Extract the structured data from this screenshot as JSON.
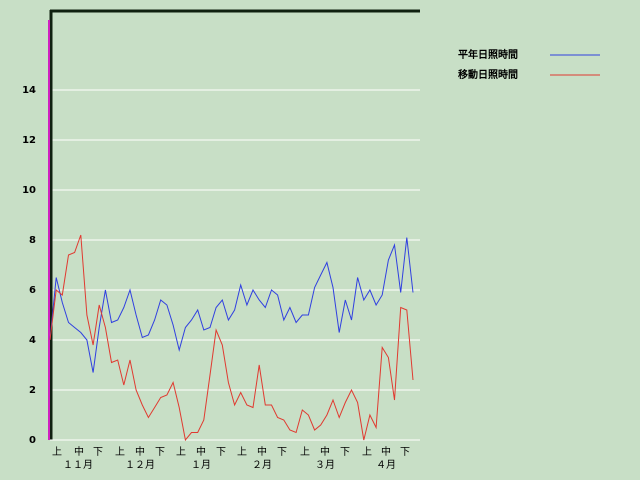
{
  "chart_data": {
    "type": "line",
    "series": [
      {
        "name": "平年日照時間",
        "color": "#3040e0",
        "values": [
          4.0,
          6.5,
          5.5,
          4.7,
          4.5,
          4.3,
          4.0,
          2.7,
          4.5,
          6.0,
          4.7,
          4.8,
          5.3,
          6.0,
          5.0,
          4.1,
          4.2,
          4.8,
          5.6,
          5.4,
          4.6,
          3.6,
          4.5,
          4.8,
          5.2,
          4.4,
          4.5,
          5.3,
          5.6,
          4.8,
          5.2,
          6.2,
          5.4,
          6.0,
          5.6,
          5.3,
          6.0,
          5.8,
          4.8,
          5.3,
          4.7,
          5.0,
          5.0,
          6.1,
          6.6,
          7.1,
          6.1,
          4.3,
          5.6,
          4.8,
          6.5,
          5.6,
          6.0,
          5.4,
          5.8,
          7.2,
          7.8,
          5.9,
          8.1,
          5.9
        ]
      },
      {
        "name": "移動日照時間",
        "color": "#e03a30",
        "values": [
          4.0,
          6.0,
          5.8,
          7.4,
          7.5,
          8.2,
          5.0,
          3.8,
          5.4,
          4.5,
          3.1,
          3.2,
          2.2,
          3.2,
          2.0,
          1.4,
          0.9,
          1.3,
          1.7,
          1.8,
          2.3,
          1.3,
          0,
          0.3,
          0.3,
          0.8,
          2.6,
          4.4,
          3.8,
          2.3,
          1.4,
          1.9,
          1.4,
          1.3,
          3.0,
          1.4,
          1.4,
          0.9,
          0.8,
          0.4,
          0.3,
          1.2,
          1.0,
          0.4,
          0.6,
          1.0,
          1.6,
          0.9,
          1.5,
          2.0,
          1.5,
          0,
          1.0,
          0.5,
          3.7,
          3.3,
          1.6,
          5.3,
          5.2,
          2.4
        ]
      }
    ],
    "x_period_labels": [
      "上",
      "中",
      "下",
      "上",
      "中",
      "下",
      "上",
      "中",
      "下",
      "上",
      "中",
      "下",
      "上",
      "中",
      "下",
      "上",
      "中",
      "下"
    ],
    "x_month_labels": [
      "１１月",
      "１２月",
      "１月",
      "２月",
      "３月",
      "４月"
    ],
    "ylim": [
      0,
      17.2
    ],
    "yticks": [
      0,
      2,
      4,
      6,
      8,
      10,
      12,
      14
    ],
    "grid": true
  }
}
